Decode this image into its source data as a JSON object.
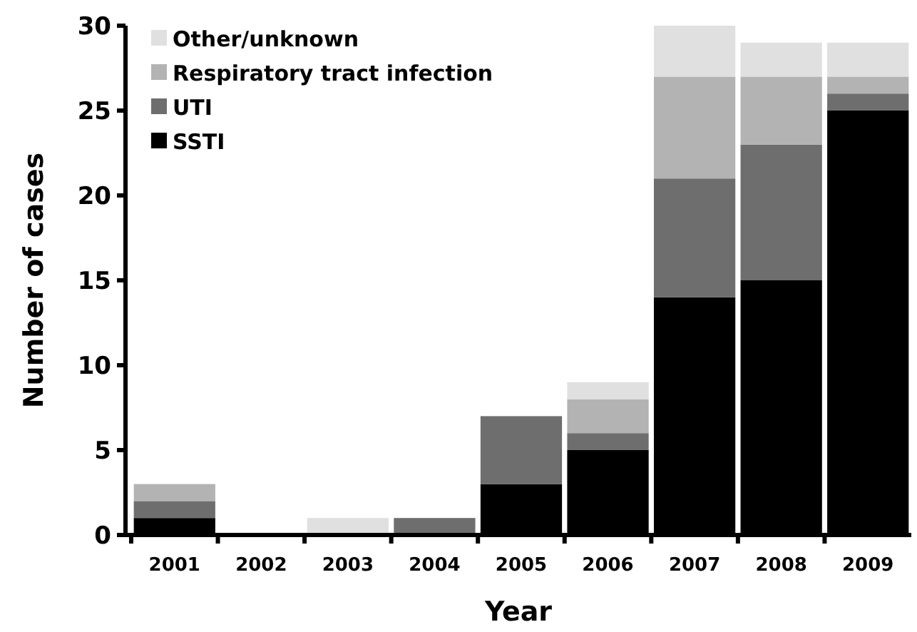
{
  "chart_data": {
    "type": "bar",
    "stacked": true,
    "xlabel": "Year",
    "ylabel": "Number of cases",
    "categories": [
      "2001",
      "2002",
      "2003",
      "2004",
      "2005",
      "2006",
      "2007",
      "2008",
      "2009"
    ],
    "series": [
      {
        "name": "SSTI",
        "color": "#000000",
        "values": [
          1,
          0,
          0,
          0,
          3,
          5,
          14,
          15,
          25
        ]
      },
      {
        "name": "UTI",
        "color": "#6e6e6e",
        "values": [
          1,
          0,
          0,
          1,
          4,
          1,
          7,
          8,
          1
        ]
      },
      {
        "name": "Respiratory tract infection",
        "color": "#b3b3b3",
        "values": [
          1,
          0,
          0,
          0,
          0,
          2,
          6,
          4,
          1
        ]
      },
      {
        "name": "Other/unknown",
        "color": "#e0e0e0",
        "values": [
          0,
          0,
          1,
          0,
          0,
          1,
          3,
          2,
          2
        ]
      }
    ],
    "ylim": [
      0,
      30
    ],
    "yticks": [
      0,
      5,
      10,
      15,
      20,
      25,
      30
    ],
    "legend": "top left",
    "grid": false
  }
}
